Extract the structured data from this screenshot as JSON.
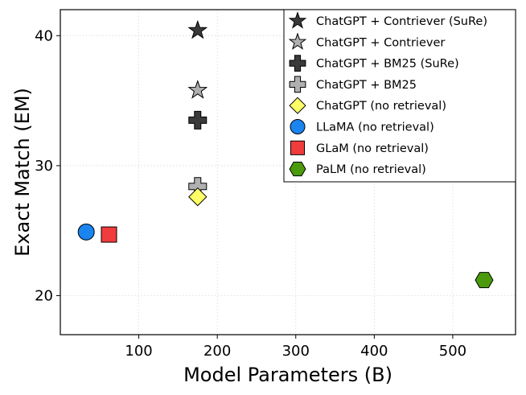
{
  "chart_data": {
    "type": "scatter",
    "xlabel": "Model Parameters (B)",
    "ylabel": "Exact Match (EM)",
    "xlim": [
      0,
      580
    ],
    "ylim": [
      17,
      42
    ],
    "xticks": [
      100,
      200,
      300,
      400,
      500
    ],
    "yticks": [
      20,
      30,
      40
    ],
    "grid": true,
    "legend_position": "top-right",
    "series": [
      {
        "name": "ChatGPT + Contriever (SuRe)",
        "marker": "star",
        "color": "#3a3a3a",
        "x": 175,
        "y": 40.4
      },
      {
        "name": "ChatGPT + Contriever",
        "marker": "star",
        "color": "#b0b0b0",
        "x": 175,
        "y": 35.8
      },
      {
        "name": "ChatGPT + BM25 (SuRe)",
        "marker": "plus",
        "color": "#3a3a3a",
        "x": 175,
        "y": 33.5
      },
      {
        "name": "ChatGPT + BM25",
        "marker": "plus",
        "color": "#b0b0b0",
        "x": 175,
        "y": 28.4
      },
      {
        "name": "ChatGPT (no retrieval)",
        "marker": "diamond",
        "color": "#ffff66",
        "x": 175,
        "y": 27.6
      },
      {
        "name": "LLaMA (no retrieval)",
        "marker": "circle",
        "color": "#1a84f0",
        "x": 33,
        "y": 24.9
      },
      {
        "name": "GLaM (no retrieval)",
        "marker": "square",
        "color": "#f03c3c",
        "x": 62,
        "y": 24.7
      },
      {
        "name": "PaLM (no retrieval)",
        "marker": "hexagon",
        "color": "#4a9a0c",
        "x": 540,
        "y": 21.2
      }
    ]
  }
}
